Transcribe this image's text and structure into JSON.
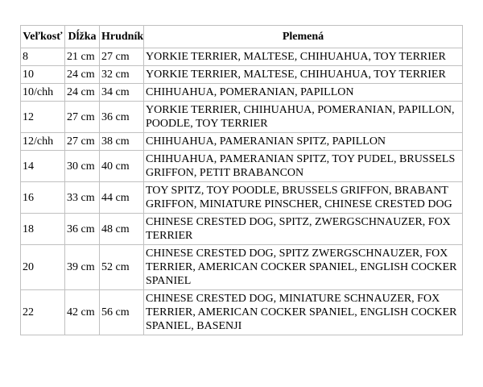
{
  "colors": {
    "border": "#c0c0c0",
    "text": "#000000",
    "background": "#ffffff"
  },
  "table": {
    "headers": {
      "size": "Veľkosť",
      "length": "Dĺžka",
      "chest": "Hrudník",
      "breeds": "Plemená"
    },
    "rows": [
      {
        "size": "8",
        "length": "21 cm",
        "chest": "27 cm",
        "breeds": "YORKIE TERRIER, MALTESE, CHIHUAHUA, TOY TERRIER"
      },
      {
        "size": "10",
        "length": "24 cm",
        "chest": "32 cm",
        "breeds": "YORKIE TERRIER, MALTESE, CHIHUAHUA, TOY TERRIER"
      },
      {
        "size": "10/chh",
        "length": "24 cm",
        "chest": "34 cm",
        "breeds": "CHIHUAHUA, POMERANIAN, PAPILLON"
      },
      {
        "size": "12",
        "length": "27 cm",
        "chest": "36 cm",
        "breeds": "YORKIE TERRIER, CHIHUAHUA, POMERANIAN, PAPILLON, POODLE, TOY TERRIER"
      },
      {
        "size": "12/chh",
        "length": "27 cm",
        "chest": "38 cm",
        "breeds": "CHIHUAHUA, PAMERANIAN SPITZ, PAPILLON"
      },
      {
        "size": "14",
        "length": "30 cm",
        "chest": "40 cm",
        "breeds": "CHIHUAHUA, PAMERANIAN SPITZ, TOY PUDEL, BRUSSELS GRIFFON, PETIT BRABANCON"
      },
      {
        "size": "16",
        "length": "33 cm",
        "chest": "44 cm",
        "breeds": "TOY SPITZ, TOY POODLE, BRUSSELS GRIFFON, BRABANT GRIFFON, MINIATURE PINSCHER, CHINESE CRESTED DOG"
      },
      {
        "size": "18",
        "length": "36 cm",
        "chest": "48 cm",
        "breeds": "CHINESE CRESTED DOG, SPITZ, ZWERGSCHNAUZER, FOX TERRIER"
      },
      {
        "size": "20",
        "length": "39 cm",
        "chest": "52 cm",
        "breeds": "CHINESE CRESTED DOG, SPITZ ZWERGSCHNAUZER, FOX TERRIER, AMERICAN COCKER SPANIEL, ENGLISH COCKER SPANIEL"
      },
      {
        "size": "22",
        "length": "42 cm",
        "chest": "56 cm",
        "breeds": "CHINESE CRESTED DOG, MINIATURE SCHNAUZER, FOX TERRIER, AMERICAN COCKER SPANIEL, ENGLISH COCKER SPANIEL, BASENJI"
      }
    ]
  }
}
